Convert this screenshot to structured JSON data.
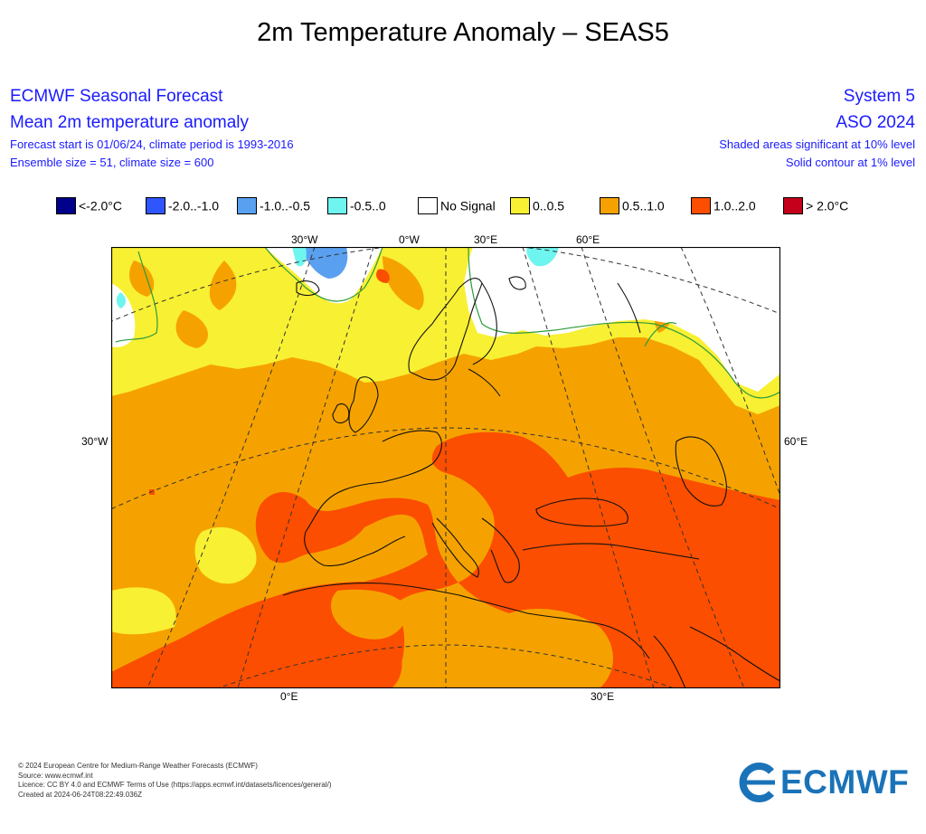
{
  "title": "2m Temperature Anomaly – SEAS5",
  "header_left": {
    "line1": "ECMWF Seasonal Forecast",
    "line2": "Mean 2m temperature anomaly",
    "line3": "Forecast start is 01/06/24, climate period is 1993-2016",
    "line4": "Ensemble size = 51, climate size = 600"
  },
  "header_right": {
    "line1": "System 5",
    "line2": "ASO 2024",
    "line3": "Shaded areas significant at 10% level",
    "line4": "Solid contour at 1% level"
  },
  "legend": [
    {
      "label": "<-2.0°C",
      "color": "#00008b"
    },
    {
      "label": "-2.0..-1.0",
      "color": "#2f55ff"
    },
    {
      "label": "-1.0..-0.5",
      "color": "#5aa0f0"
    },
    {
      "label": "-0.5..0",
      "color": "#6ff5f0"
    },
    {
      "label": "No Signal",
      "color": "#ffffff"
    },
    {
      "label": "0..0.5",
      "color": "#f8f032"
    },
    {
      "label": "0.5..1.0",
      "color": "#f5a200"
    },
    {
      "label": "1.0..2.0",
      "color": "#fb4e00"
    },
    {
      "label": "> 2.0°C",
      "color": "#c4001a"
    }
  ],
  "map": {
    "lon_labels_top": [
      "30°W",
      "0°W",
      "30°E",
      "60°E"
    ],
    "lon_labels_bottom": [
      "0°E",
      "30°E"
    ],
    "lat_label_left": "30°W",
    "lat_label_right": "60°E"
  },
  "footer": [
    "© 2024 European Centre for Medium-Range Weather Forecasts (ECMWF)",
    "Source: www.ecmwf.int",
    "Licence: CC BY 4.0 and ECMWF Terms of Use (https://apps.ecmwf.int/datasets/licences/general/)",
    "Created at 2024-06-24T08:22:49.036Z"
  ],
  "logo": {
    "text": "ECMWF",
    "color": "#1a73b8"
  }
}
